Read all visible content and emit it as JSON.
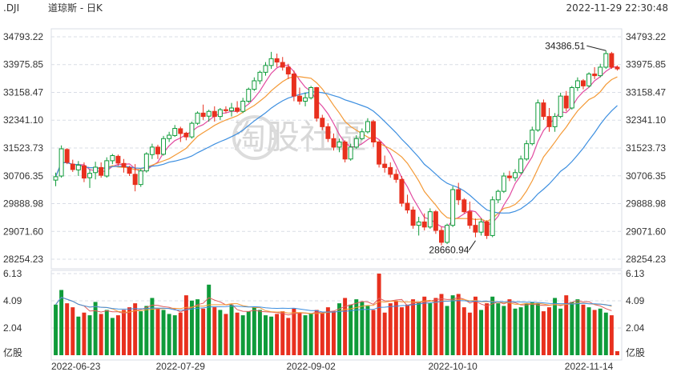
{
  "header": {
    "symbol": ".DJI",
    "name": "道琼斯 - 日K",
    "datetime": "2022-11-29 22:30:48"
  },
  "watermark": {
    "text": "淘股社區"
  },
  "colors": {
    "up": "#0f9b3a",
    "down": "#e8301e",
    "ma5": "#e14aa0",
    "ma10": "#f49a37",
    "ma20": "#3d8fe0",
    "grid": "#d9dde6",
    "vol_ma": "#e05c5c",
    "vol_ma2": "#f49a37",
    "vol_ma3": "#3d8fe0"
  },
  "price_axis": {
    "ticks": [
      "34793.22",
      "33975.85",
      "33158.47",
      "32341.10",
      "31523.73",
      "30706.35",
      "29888.98",
      "29071.60",
      "28254.23"
    ]
  },
  "volume_axis": {
    "ticks": [
      "6.13",
      "4.09",
      "2.04"
    ],
    "unit": "亿股"
  },
  "x_axis": {
    "labels": [
      "2022-06-23",
      "2022-07-29",
      "2022-09-02",
      "2022-10-10",
      "2022-11-14"
    ]
  },
  "annotations": {
    "high_label": "34386.51",
    "low_label": "28660.94"
  },
  "chart_data": {
    "type": "candlestick",
    "ylim": [
      28254.23,
      34793.22
    ],
    "volume_ylim": [
      0,
      6.13
    ],
    "series_keys": [
      "open",
      "high",
      "low",
      "close",
      "volume"
    ],
    "candles": [
      [
        30580,
        30800,
        30400,
        30680,
        3.8
      ],
      [
        30700,
        31600,
        30650,
        31500,
        4.9
      ],
      [
        31480,
        31520,
        31050,
        31100,
        3.9
      ],
      [
        31050,
        31180,
        30820,
        30890,
        3.6
      ],
      [
        30880,
        31140,
        30700,
        31020,
        2.9
      ],
      [
        31000,
        31100,
        30520,
        30640,
        3.2
      ],
      [
        30650,
        30900,
        30350,
        30780,
        3.0
      ],
      [
        30800,
        31120,
        30600,
        30960,
        4.0
      ],
      [
        30950,
        31100,
        30650,
        30720,
        3.1
      ],
      [
        30700,
        31250,
        30650,
        31150,
        3.4
      ],
      [
        31150,
        31350,
        31050,
        31300,
        2.8
      ],
      [
        31280,
        31330,
        31000,
        31080,
        3.0
      ],
      [
        31070,
        31200,
        30800,
        30970,
        3.4
      ],
      [
        30950,
        31000,
        30700,
        30780,
        3.6
      ],
      [
        30750,
        31050,
        30250,
        30450,
        3.9
      ],
      [
        30450,
        30900,
        30380,
        30850,
        3.3
      ],
      [
        30850,
        31400,
        30800,
        31350,
        3.7
      ],
      [
        31330,
        31650,
        31200,
        31550,
        4.3
      ],
      [
        31550,
        31620,
        31200,
        31350,
        3.5
      ],
      [
        31340,
        31880,
        31300,
        31800,
        3.4
      ],
      [
        31800,
        32000,
        31700,
        31900,
        3.1
      ],
      [
        31890,
        32200,
        31850,
        32100,
        3.0
      ],
      [
        32090,
        32150,
        31700,
        31950,
        3.2
      ],
      [
        31960,
        32000,
        31750,
        31850,
        4.5
      ],
      [
        31850,
        32300,
        31800,
        32250,
        4.1
      ],
      [
        32250,
        32600,
        32200,
        32550,
        4.2
      ],
      [
        32550,
        32800,
        32350,
        32450,
        3.5
      ],
      [
        32460,
        32650,
        32300,
        32600,
        5.3
      ],
      [
        32600,
        32750,
        32300,
        32450,
        3.6
      ],
      [
        32450,
        32700,
        32350,
        32650,
        3.4
      ],
      [
        32650,
        32750,
        32550,
        32620,
        3.1
      ],
      [
        32620,
        32850,
        32450,
        32700,
        3.8
      ],
      [
        32700,
        32900,
        32550,
        32600,
        3.2
      ],
      [
        32600,
        33000,
        32550,
        32900,
        3.0
      ],
      [
        32900,
        33300,
        32850,
        33250,
        3.3
      ],
      [
        33250,
        33600,
        33200,
        33500,
        3.6
      ],
      [
        33500,
        33800,
        33400,
        33750,
        3.4
      ],
      [
        33750,
        34050,
        33650,
        33950,
        3.0
      ],
      [
        33950,
        34350,
        33850,
        34150,
        2.9
      ],
      [
        34150,
        34300,
        33900,
        34050,
        3.1
      ],
      [
        34040,
        34200,
        33800,
        33900,
        3.3
      ],
      [
        33900,
        34000,
        33550,
        33700,
        2.8
      ],
      [
        33700,
        33800,
        32900,
        33050,
        3.5
      ],
      [
        33050,
        33300,
        32800,
        32900,
        3.2
      ],
      [
        32900,
        33150,
        32750,
        33000,
        3.0
      ],
      [
        33000,
        33350,
        32950,
        33300,
        3.1
      ],
      [
        33300,
        33320,
        32300,
        32400,
        3.4
      ],
      [
        32400,
        32500,
        32050,
        32150,
        3.2
      ],
      [
        32150,
        32250,
        31700,
        31800,
        3.6
      ],
      [
        31800,
        31950,
        31450,
        31550,
        3.3
      ],
      [
        31550,
        31800,
        31400,
        31700,
        3.9
      ],
      [
        31700,
        31750,
        31100,
        31200,
        4.3
      ],
      [
        31200,
        31650,
        31150,
        31550,
        3.8
      ],
      [
        31550,
        31900,
        31500,
        31800,
        4.2
      ],
      [
        31800,
        32100,
        31750,
        32000,
        4.0
      ],
      [
        32000,
        32400,
        31950,
        32300,
        3.7
      ],
      [
        32300,
        32350,
        31550,
        31700,
        3.4
      ],
      [
        31700,
        31750,
        30950,
        31050,
        6.13
      ],
      [
        31050,
        31300,
        30800,
        30950,
        3.2
      ],
      [
        30950,
        31100,
        30650,
        30750,
        3.9
      ],
      [
        30750,
        30900,
        30500,
        30600,
        4.1
      ],
      [
        30600,
        30700,
        29800,
        29900,
        3.6
      ],
      [
        29900,
        30150,
        29600,
        29700,
        3.8
      ],
      [
        29700,
        29800,
        29150,
        29250,
        4.2
      ],
      [
        29250,
        29500,
        28950,
        29350,
        4.0
      ],
      [
        29350,
        29600,
        29100,
        29200,
        4.4
      ],
      [
        29200,
        29750,
        29150,
        29650,
        3.9
      ],
      [
        29650,
        29700,
        29000,
        29100,
        4.3
      ],
      [
        29100,
        29200,
        28660.94,
        28750,
        4.6
      ],
      [
        28750,
        29300,
        28700,
        29250,
        3.7
      ],
      [
        29250,
        30400,
        29200,
        30300,
        4.5
      ],
      [
        30300,
        30500,
        29850,
        30000,
        4.6
      ],
      [
        30000,
        30050,
        29600,
        29650,
        3.6
      ],
      [
        29650,
        29950,
        29150,
        29250,
        3.2
      ],
      [
        29250,
        29450,
        28900,
        29050,
        4.4
      ],
      [
        29050,
        29450,
        28950,
        29350,
        3.4
      ],
      [
        29350,
        29400,
        28850,
        28950,
        3.9
      ],
      [
        28950,
        30100,
        28900,
        30000,
        4.4
      ],
      [
        30000,
        30300,
        29900,
        30250,
        3.9
      ],
      [
        30250,
        30800,
        30200,
        30700,
        3.7
      ],
      [
        30700,
        30850,
        30550,
        30650,
        4.2
      ],
      [
        30650,
        30900,
        30550,
        30800,
        3.5
      ],
      [
        30800,
        31300,
        30750,
        31200,
        3.6
      ],
      [
        31200,
        31750,
        31150,
        31650,
        3.9
      ],
      [
        31650,
        32150,
        31600,
        32050,
        4.0
      ],
      [
        32050,
        32950,
        32000,
        32850,
        3.9
      ],
      [
        32850,
        32950,
        32350,
        32450,
        3.3
      ],
      [
        32450,
        32700,
        32000,
        32150,
        3.6
      ],
      [
        32150,
        32550,
        32000,
        32450,
        4.3
      ],
      [
        32450,
        33150,
        32400,
        33050,
        3.5
      ],
      [
        33050,
        33200,
        32600,
        32700,
        4.5
      ],
      [
        32700,
        33350,
        32650,
        33300,
        4.0
      ],
      [
        33300,
        33600,
        33200,
        33500,
        4.2
      ],
      [
        33500,
        33550,
        33250,
        33350,
        3.8
      ],
      [
        33350,
        33750,
        33300,
        33700,
        3.6
      ],
      [
        33700,
        33900,
        33550,
        33650,
        3.4
      ],
      [
        33650,
        34000,
        33600,
        33900,
        3.5
      ],
      [
        33900,
        34386.51,
        33850,
        34300,
        3.2
      ],
      [
        34300,
        34350,
        33850,
        33900,
        3.0
      ],
      [
        33900,
        33950,
        33800,
        33850,
        0.3
      ]
    ]
  }
}
